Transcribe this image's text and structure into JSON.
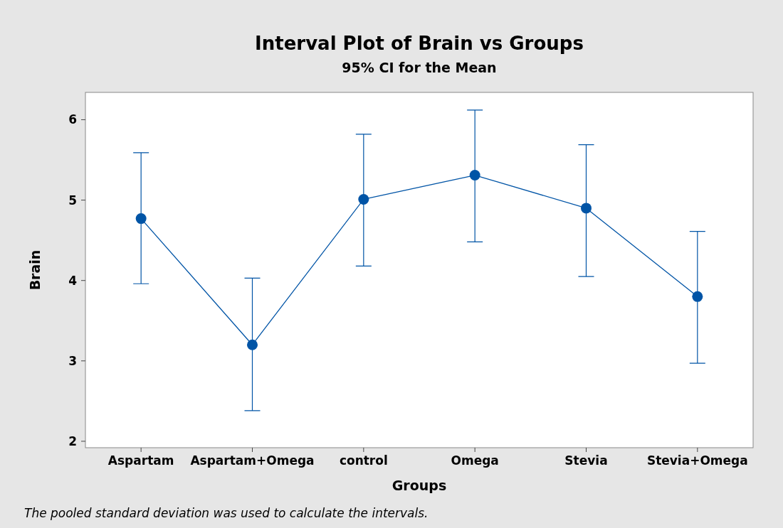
{
  "chart_data": {
    "type": "line",
    "title": "Interval Plot of Brain vs Groups",
    "subtitle": "95% CI for the Mean",
    "xlabel": "Groups",
    "ylabel": "Brain",
    "categories": [
      "Aspartam",
      "Aspartam+Omega",
      "control",
      "Omega",
      "Stevia",
      "Stevia+Omega"
    ],
    "series": [
      {
        "color": "#0054a6",
        "values": [
          4.77,
          3.2,
          5.01,
          5.31,
          4.9,
          3.8
        ],
        "errors": [
          [
            3.96,
            5.59
          ],
          [
            2.38,
            4.03
          ],
          [
            4.18,
            5.82
          ],
          [
            4.48,
            6.12
          ],
          [
            4.05,
            5.69
          ],
          [
            2.97,
            4.61
          ]
        ]
      }
    ],
    "ylim": [
      1.92,
      6.34
    ],
    "yticks": [
      2,
      3,
      4,
      5,
      6
    ],
    "grid": false,
    "marker": "circle",
    "line_style": "solid",
    "annotations": [
      "The pooled standard deviation was used to calculate the intervals."
    ]
  }
}
